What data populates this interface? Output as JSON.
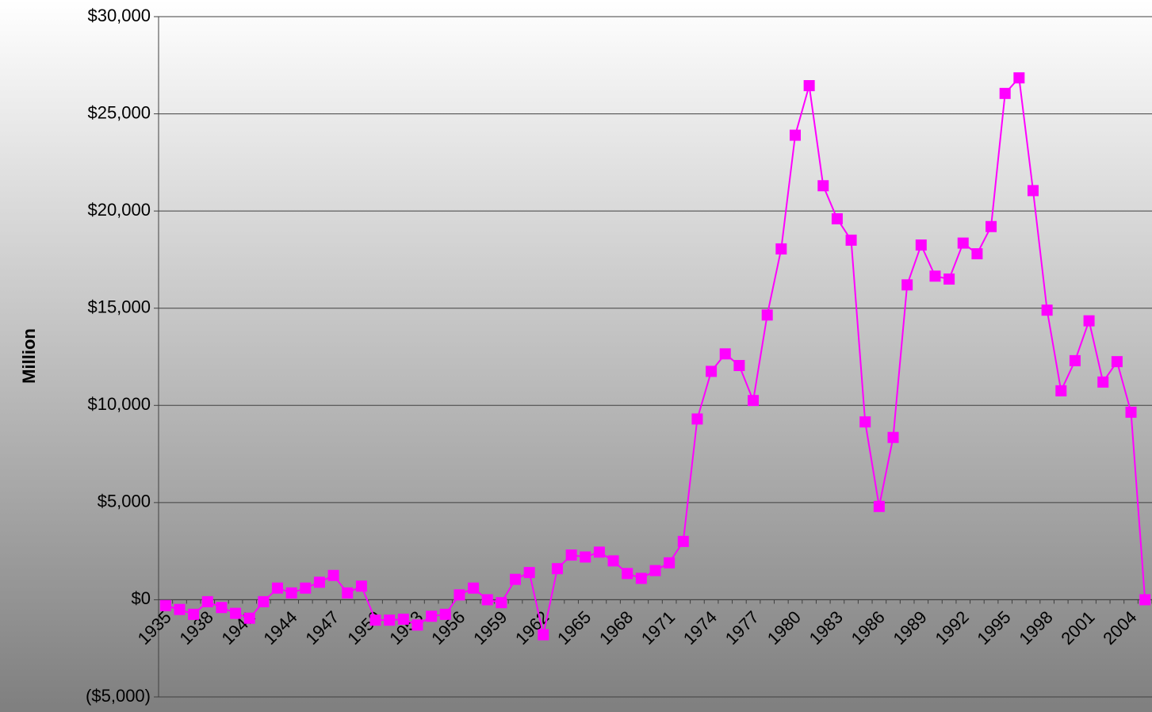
{
  "chart_data": {
    "type": "line",
    "y_label": "Million",
    "categories": [
      "1935",
      null,
      null,
      "1938",
      null,
      null,
      "1941",
      null,
      null,
      "1944",
      null,
      null,
      "1947",
      null,
      null,
      "1950",
      null,
      null,
      "1953",
      null,
      null,
      "1956",
      null,
      null,
      "1959",
      null,
      null,
      "1962",
      null,
      null,
      "1965",
      null,
      null,
      "1968",
      null,
      null,
      "1971",
      null,
      null,
      "1974",
      null,
      null,
      "1977",
      null,
      null,
      "1980",
      null,
      null,
      "1983",
      null,
      null,
      "1986",
      null,
      null,
      "1989",
      null,
      null,
      "1992",
      null,
      null,
      "1995",
      null,
      null,
      "1998",
      null,
      null,
      "2001",
      null,
      null,
      "2004",
      null
    ],
    "series": [
      {
        "color": "#ff00ff",
        "values": [
          -300,
          -500,
          -750,
          -100,
          -400,
          -700,
          -950,
          -100,
          600,
          350,
          600,
          900,
          1250,
          350,
          700,
          -1050,
          -1050,
          -1000,
          -1300,
          -850,
          -750,
          250,
          600,
          0,
          -150,
          1050,
          1400,
          -1800,
          1600,
          2300,
          2200,
          2450,
          2000,
          1350,
          1100,
          1500,
          1900,
          3000,
          9300,
          11750,
          12650,
          12050,
          10250,
          14650,
          18050,
          23900,
          26450,
          21300,
          19600,
          18500,
          9150,
          4800,
          8350,
          16200,
          18250,
          16650,
          16500,
          18350,
          17800,
          19200,
          26050,
          26850,
          21050,
          14900,
          10750,
          12300,
          14350,
          11200,
          12250,
          9650,
          0
        ]
      }
    ],
    "ylim": [
      -5000,
      30000
    ],
    "yticks": [
      {
        "value": -5000,
        "label": "($5,000)"
      },
      {
        "value": 0,
        "label": "$0"
      },
      {
        "value": 5000,
        "label": "$5,000"
      },
      {
        "value": 10000,
        "label": "$10,000"
      },
      {
        "value": 15000,
        "label": "$15,000"
      },
      {
        "value": 20000,
        "label": "$20,000"
      },
      {
        "value": 25000,
        "label": "$25,000"
      },
      {
        "value": 30000,
        "label": "$30,000"
      }
    ],
    "grid": true
  }
}
